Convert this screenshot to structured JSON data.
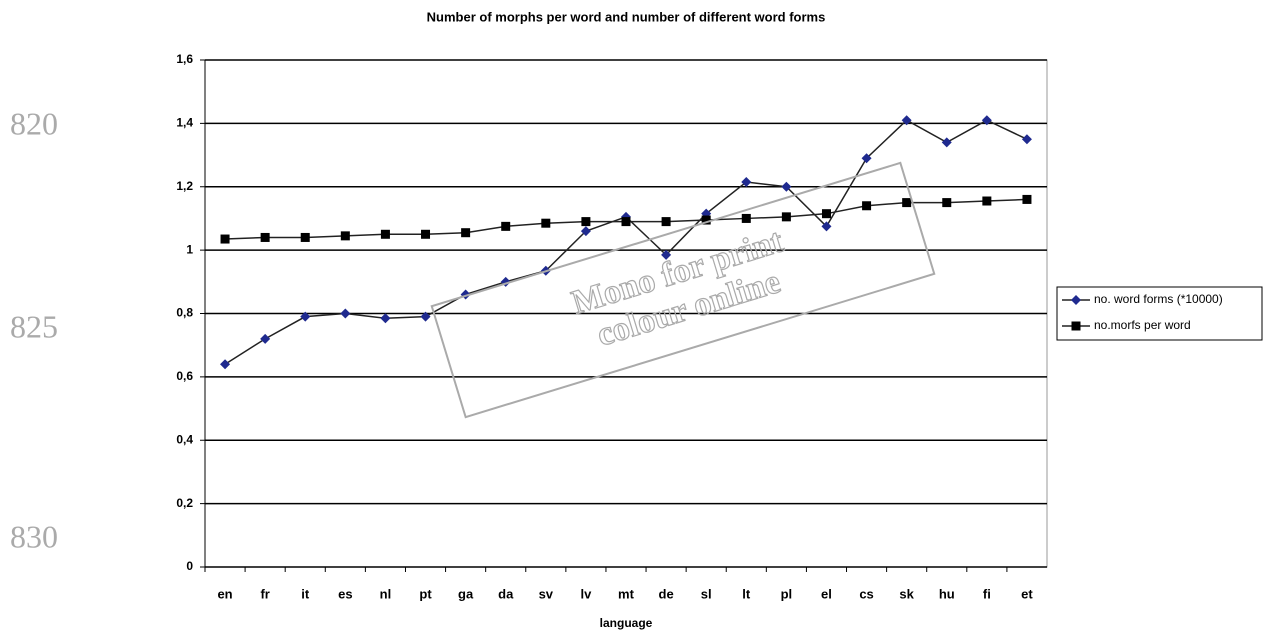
{
  "chart_data": {
    "type": "line",
    "title": "Number of morphs per word and number of different word forms",
    "xlabel": "language",
    "categories": [
      "en",
      "fr",
      "it",
      "es",
      "nl",
      "pt",
      "ga",
      "da",
      "sv",
      "lv",
      "mt",
      "de",
      "sl",
      "lt",
      "pl",
      "el",
      "cs",
      "sk",
      "hu",
      "fi",
      "et"
    ],
    "series": [
      {
        "name": "no. word forms (*10000)",
        "color": "#1f2a8f",
        "marker": "diamond",
        "values": [
          0.64,
          0.72,
          0.79,
          0.8,
          0.785,
          0.79,
          0.86,
          0.9,
          0.935,
          1.06,
          1.105,
          0.985,
          1.115,
          1.215,
          1.2,
          1.075,
          1.29,
          1.41,
          1.34,
          1.41,
          1.35
        ]
      },
      {
        "name": "no.morfs per word",
        "color": "#000000",
        "marker": "square",
        "values": [
          1.035,
          1.04,
          1.04,
          1.045,
          1.05,
          1.05,
          1.055,
          1.075,
          1.085,
          1.09,
          1.09,
          1.09,
          1.095,
          1.1,
          1.105,
          1.115,
          1.14,
          1.15,
          1.15,
          1.155,
          1.16
        ]
      }
    ],
    "ylim": [
      0,
      1.6
    ],
    "yticks": [
      0,
      {
        "value": 0.2,
        "label": "0,2"
      },
      {
        "value": 0.4,
        "label": "0,4"
      },
      {
        "value": 0.6,
        "label": "0,6"
      },
      {
        "value": 0.8,
        "label": "0,8"
      },
      1,
      {
        "value": 1.2,
        "label": "1,2"
      },
      {
        "value": 1.4,
        "label": "1,4"
      },
      {
        "value": 1.6,
        "label": "1,6"
      }
    ],
    "grid": true,
    "legend": "right"
  },
  "line_numbers": [
    "820",
    "825",
    "830"
  ],
  "watermark": [
    "Mono for print",
    "colour online"
  ]
}
